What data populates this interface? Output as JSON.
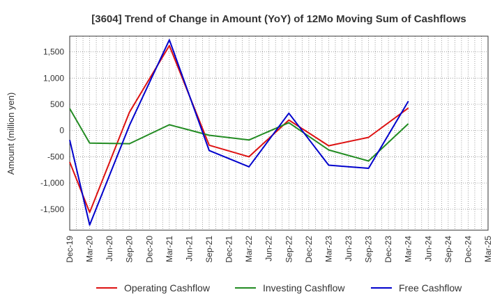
{
  "chart_data": {
    "type": "line",
    "title": "[3604]  Trend of Change in Amount (YoY) of 12Mo Moving Sum of Cashflows",
    "ylabel": "Amount (million yen)",
    "xlabel": "",
    "ylim": [
      -1900,
      1800
    ],
    "y_ticks": [
      -1500,
      -1000,
      -500,
      0,
      500,
      1000,
      1500
    ],
    "y_tick_labels": [
      "-1,500",
      "-1,000",
      "-500",
      "0",
      "500",
      "1,000",
      "1,500"
    ],
    "categories": [
      "Dec-19",
      "Mar-20",
      "Jun-20",
      "Sep-20",
      "Dec-20",
      "Mar-21",
      "Jun-21",
      "Sep-21",
      "Dec-21",
      "Mar-22",
      "Jun-22",
      "Sep-22",
      "Dec-22",
      "Mar-23",
      "Jun-23",
      "Sep-23",
      "Dec-23",
      "Mar-24",
      "Jun-24",
      "Sep-24",
      "Dec-24",
      "Mar-25"
    ],
    "grid": true,
    "legend_position": "bottom",
    "series": [
      {
        "name": "Operating Cashflow",
        "color": "#dd1111",
        "values": [
          -600,
          -1560,
          null,
          350,
          null,
          1620,
          null,
          -280,
          null,
          -500,
          null,
          200,
          null,
          -290,
          null,
          -130,
          null,
          430,
          null,
          null,
          null,
          null
        ]
      },
      {
        "name": "Investing Cashflow",
        "color": "#228b22",
        "values": [
          420,
          -240,
          null,
          -250,
          null,
          110,
          null,
          -90,
          null,
          -180,
          null,
          150,
          null,
          -370,
          null,
          -580,
          null,
          130,
          null,
          null,
          null,
          null
        ]
      },
      {
        "name": "Free Cashflow",
        "color": "#0000cc",
        "values": [
          -180,
          -1800,
          null,
          100,
          null,
          1730,
          null,
          -380,
          null,
          -690,
          null,
          330,
          null,
          -660,
          null,
          -720,
          null,
          560,
          null,
          null,
          null,
          null
        ]
      }
    ]
  }
}
